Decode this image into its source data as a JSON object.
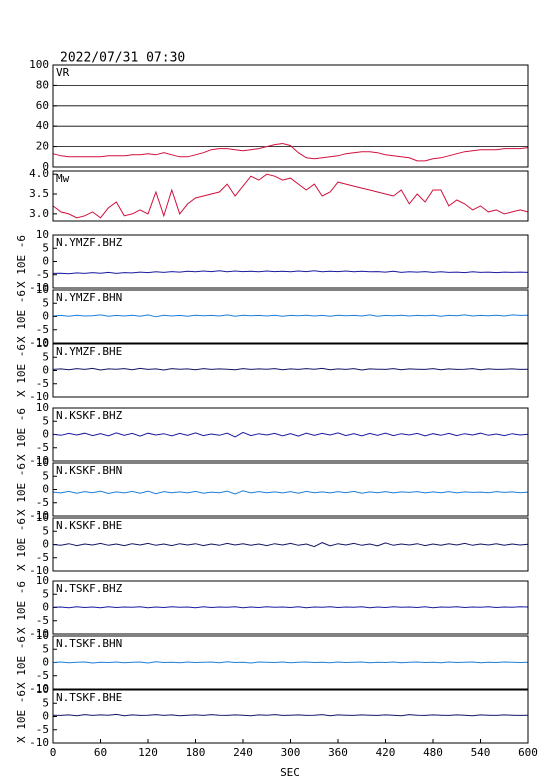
{
  "chart_data": {
    "type": "line",
    "title": "2022/07/31  07:30",
    "xlabel": "SEC",
    "xlim": [
      0,
      600
    ],
    "xticks": [
      0,
      60,
      120,
      180,
      240,
      300,
      360,
      420,
      480,
      540,
      600
    ],
    "x": [
      0,
      10,
      20,
      30,
      40,
      50,
      60,
      70,
      80,
      90,
      100,
      110,
      120,
      130,
      140,
      150,
      160,
      170,
      180,
      190,
      200,
      210,
      220,
      230,
      240,
      250,
      260,
      270,
      280,
      290,
      300,
      310,
      320,
      330,
      340,
      350,
      360,
      370,
      380,
      390,
      400,
      410,
      420,
      430,
      440,
      450,
      460,
      470,
      480,
      490,
      500,
      510,
      520,
      530,
      540,
      550,
      560,
      570,
      580,
      590,
      600
    ],
    "panels": [
      {
        "ylim": [
          0,
          100
        ],
        "yticks": [
          0,
          20,
          40,
          60,
          80,
          100
        ],
        "grid": true,
        "series": [
          {
            "name": "VR",
            "color": "#d0103c",
            "values": [
              13,
              11,
              10,
              10,
              10,
              10,
              10,
              11,
              11,
              11,
              12,
              12,
              13,
              12,
              14,
              12,
              10,
              10,
              12,
              14,
              17,
              18,
              18,
              17,
              16,
              17,
              18,
              20,
              22,
              23,
              21,
              14,
              9,
              8,
              9,
              10,
              11,
              13,
              14,
              15,
              15,
              14,
              12,
              11,
              10,
              9,
              6,
              6,
              8,
              9,
              11,
              13,
              15,
              16,
              17,
              17,
              17,
              18,
              18,
              18,
              19
            ]
          }
        ]
      },
      {
        "ylim": [
          2.82,
          4.08
        ],
        "yticks": [
          {
            "value": 3,
            "label": "3.0"
          },
          3.5,
          {
            "value": 4,
            "label": "4.0"
          }
        ],
        "grid": false,
        "series": [
          {
            "name": "Mw",
            "color": "#d0103c",
            "values": [
              3.2,
              3.05,
              3.0,
              2.9,
              2.95,
              3.05,
              2.9,
              3.15,
              3.3,
              2.95,
              3.0,
              3.1,
              3.0,
              3.55,
              2.95,
              3.6,
              3.0,
              3.25,
              3.4,
              3.45,
              3.5,
              3.55,
              3.75,
              3.45,
              3.7,
              3.95,
              3.85,
              4.0,
              3.95,
              3.85,
              3.9,
              3.75,
              3.6,
              3.75,
              3.45,
              3.55,
              3.8,
              3.75,
              3.7,
              3.65,
              3.6,
              3.55,
              3.5,
              3.45,
              3.6,
              3.25,
              3.5,
              3.3,
              3.6,
              3.6,
              3.2,
              3.35,
              3.25,
              3.1,
              3.2,
              3.05,
              3.1,
              3.0,
              3.05,
              3.1,
              3.05
            ]
          }
        ]
      },
      {
        "ylim": [
          -10,
          10
        ],
        "yticks": [
          -10,
          -5,
          0,
          5,
          10
        ],
        "ylabel": "X 10E -6",
        "grid": false,
        "series": [
          {
            "name": "N.YMZF.BHZ",
            "color": "#1a1aa0",
            "values": [
              -4.5,
              -4.4,
              -4.6,
              -4.3,
              -4.5,
              -4.2,
              -4.4,
              -4.1,
              -4.5,
              -4.2,
              -4.3,
              -4.0,
              -4.2,
              -3.9,
              -4.1,
              -3.8,
              -4.0,
              -3.7,
              -3.9,
              -3.6,
              -3.8,
              -3.5,
              -3.9,
              -3.6,
              -3.8,
              -3.7,
              -3.9,
              -3.6,
              -3.8,
              -3.7,
              -3.9,
              -3.6,
              -3.8,
              -3.5,
              -3.9,
              -3.7,
              -3.8,
              -3.6,
              -3.9,
              -3.7,
              -3.9,
              -3.8,
              -4.0,
              -3.7,
              -4.1,
              -3.9,
              -4.0,
              -3.8,
              -4.1,
              -3.9,
              -4.1,
              -4.0,
              -4.2,
              -3.9,
              -4.1,
              -4.0,
              -4.2,
              -4.0,
              -4.1,
              -4.0,
              -4.1
            ]
          }
        ]
      },
      {
        "ylim": [
          -10,
          10
        ],
        "yticks": [
          -10,
          -5,
          0,
          5,
          10
        ],
        "ylabel": "X 10E -6",
        "grid": false,
        "series": [
          {
            "name": "N.YMZF.BHN",
            "color": "#1e7fd8",
            "values": [
              0.2,
              0.4,
              0.1,
              0.5,
              0.2,
              0.3,
              0.6,
              0.1,
              0.4,
              0.2,
              0.5,
              0.1,
              0.6,
              -0.1,
              0.5,
              0.2,
              0.4,
              0.1,
              0.5,
              0.3,
              0.4,
              0.2,
              0.6,
              0.1,
              0.5,
              0.3,
              0.4,
              0.2,
              0.5,
              0.1,
              0.4,
              0.3,
              0.5,
              0.2,
              0.4,
              0.1,
              0.5,
              0.3,
              0.4,
              0.2,
              0.6,
              0.1,
              0.4,
              0.3,
              0.5,
              0.2,
              0.4,
              0.3,
              0.5,
              0.1,
              0.4,
              0.3,
              0.6,
              0.2,
              0.4,
              0.3,
              0.5,
              0.2,
              0.6,
              0.4,
              0.5
            ]
          }
        ]
      },
      {
        "ylim": [
          -10,
          10
        ],
        "yticks": [
          -10,
          -5,
          0,
          5,
          10
        ],
        "ylabel": "X 10E -6",
        "grid": false,
        "series": [
          {
            "name": "N.YMZF.BHE",
            "color": "#141464",
            "values": [
              0.4,
              0.6,
              0.3,
              0.7,
              0.4,
              0.8,
              0.2,
              0.6,
              0.5,
              0.7,
              0.3,
              0.8,
              0.4,
              0.6,
              0.2,
              0.7,
              0.5,
              0.6,
              0.3,
              0.7,
              0.4,
              0.6,
              0.5,
              0.3,
              0.7,
              0.4,
              0.6,
              0.5,
              0.7,
              0.3,
              0.6,
              0.4,
              0.7,
              0.5,
              0.8,
              0.3,
              0.6,
              0.4,
              0.7,
              0.2,
              0.6,
              0.5,
              0.4,
              0.7,
              0.3,
              0.6,
              0.5,
              0.4,
              0.7,
              0.3,
              0.6,
              0.4,
              0.5,
              0.7,
              0.3,
              0.6,
              0.4,
              0.5,
              0.6,
              0.4,
              0.5
            ]
          }
        ]
      },
      {
        "ylim": [
          -10,
          10
        ],
        "yticks": [
          -10,
          -5,
          0,
          5,
          10
        ],
        "ylabel": "X 10E -6",
        "grid": false,
        "series": [
          {
            "name": "N.KSKF.BHZ",
            "color": "#1a1aa0",
            "values": [
              0.1,
              -0.3,
              0.4,
              -0.2,
              0.5,
              -0.4,
              0.3,
              -0.5,
              0.6,
              -0.3,
              0.4,
              -0.6,
              0.5,
              -0.2,
              0.3,
              -0.5,
              0.4,
              -0.3,
              0.6,
              -0.4,
              0.2,
              -0.3,
              0.5,
              -0.9,
              0.8,
              -0.4,
              0.3,
              -0.2,
              0.4,
              -0.5,
              0.3,
              -0.6,
              0.5,
              -0.3,
              0.4,
              -0.2,
              0.6,
              -0.4,
              0.3,
              -0.5,
              0.4,
              -0.3,
              0.5,
              -0.4,
              0.3,
              -0.2,
              0.4,
              -0.5,
              0.3,
              -0.3,
              0.4,
              -0.4,
              0.3,
              -0.2,
              0.5,
              -0.3,
              0.2,
              -0.4,
              0.3,
              -0.2,
              0.1
            ]
          }
        ]
      },
      {
        "ylim": [
          -10,
          10
        ],
        "yticks": [
          -10,
          -5,
          0,
          5,
          10
        ],
        "ylabel": "X 10E -6",
        "grid": false,
        "series": [
          {
            "name": "N.KSKF.BHN",
            "color": "#1e7fd8",
            "values": [
              -1.0,
              -1.3,
              -0.7,
              -1.4,
              -0.8,
              -1.2,
              -0.6,
              -1.5,
              -0.9,
              -1.3,
              -0.7,
              -1.4,
              -0.6,
              -1.6,
              -0.8,
              -1.2,
              -0.9,
              -1.3,
              -0.7,
              -1.4,
              -1.0,
              -1.2,
              -0.6,
              -1.7,
              -0.5,
              -1.3,
              -0.8,
              -1.2,
              -0.9,
              -1.3,
              -0.8,
              -1.4,
              -0.7,
              -1.2,
              -0.9,
              -1.3,
              -0.8,
              -1.2,
              -0.7,
              -1.4,
              -0.9,
              -1.2,
              -0.8,
              -1.3,
              -0.9,
              -1.1,
              -0.8,
              -1.3,
              -0.9,
              -1.2,
              -0.8,
              -1.3,
              -0.9,
              -1.1,
              -1.0,
              -1.2,
              -0.8,
              -1.1,
              -0.9,
              -1.2,
              -1.0
            ]
          }
        ]
      },
      {
        "ylim": [
          -10,
          10
        ],
        "yticks": [
          -10,
          -5,
          0,
          5,
          10
        ],
        "ylabel": "X 10E -6",
        "grid": false,
        "series": [
          {
            "name": "N.KSKF.BHE",
            "color": "#141464",
            "values": [
              0.0,
              -0.3,
              0.3,
              -0.4,
              0.2,
              -0.2,
              0.4,
              -0.3,
              0.2,
              -0.4,
              0.3,
              -0.2,
              0.4,
              -0.3,
              0.2,
              -0.4,
              0.3,
              -0.2,
              0.3,
              -0.4,
              0.2,
              -0.3,
              0.4,
              -0.2,
              0.3,
              -0.3,
              0.2,
              -0.4,
              0.3,
              -0.2,
              0.4,
              -0.3,
              0.2,
              -0.8,
              0.7,
              -0.5,
              0.3,
              -0.2,
              0.4,
              -0.3,
              0.2,
              -0.5,
              0.6,
              -0.3,
              0.2,
              -0.2,
              0.3,
              -0.4,
              0.2,
              -0.3,
              0.3,
              -0.2,
              0.4,
              -0.3,
              0.2,
              -0.2,
              0.3,
              -0.3,
              0.2,
              -0.2,
              0.1
            ]
          }
        ]
      },
      {
        "ylim": [
          -10,
          10
        ],
        "yticks": [
          -10,
          -5,
          0,
          5,
          10
        ],
        "ylabel": "X 10E -6",
        "grid": false,
        "series": [
          {
            "name": "N.TSKF.BHZ",
            "color": "#1a1aa0",
            "values": [
              0.1,
              0.2,
              -0.1,
              0.3,
              0.0,
              0.2,
              -0.1,
              0.3,
              0.0,
              0.2,
              0.1,
              0.3,
              -0.1,
              0.2,
              0.0,
              0.3,
              0.1,
              0.2,
              -0.1,
              0.3,
              0.0,
              0.2,
              0.1,
              0.3,
              -0.1,
              0.2,
              0.0,
              0.3,
              0.1,
              0.2,
              0.0,
              0.3,
              -0.1,
              0.2,
              0.1,
              0.3,
              0.0,
              0.2,
              0.1,
              0.3,
              -0.1,
              0.2,
              0.0,
              0.3,
              0.1,
              0.2,
              0.0,
              0.3,
              -0.1,
              0.2,
              0.1,
              0.3,
              0.0,
              0.2,
              0.1,
              0.3,
              0.0,
              0.2,
              0.1,
              0.3,
              0.2
            ]
          }
        ]
      },
      {
        "ylim": [
          -10,
          10
        ],
        "yticks": [
          -10,
          -5,
          0,
          5,
          10
        ],
        "ylabel": "X 10E -6",
        "grid": false,
        "series": [
          {
            "name": "N.TSKF.BHN",
            "color": "#1e7fd8",
            "values": [
              0.0,
              0.2,
              -0.1,
              0.1,
              0.2,
              -0.2,
              0.1,
              0.0,
              0.2,
              -0.1,
              0.1,
              0.2,
              -0.2,
              0.3,
              0.0,
              0.1,
              -0.1,
              0.2,
              0.0,
              0.1,
              0.2,
              -0.1,
              0.3,
              0.0,
              0.1,
              -0.2,
              0.2,
              0.1,
              0.0,
              0.2,
              -0.1,
              0.1,
              0.2,
              0.0,
              0.1,
              -0.1,
              0.2,
              0.0,
              0.1,
              0.2,
              -0.1,
              0.1,
              0.0,
              0.2,
              -0.1,
              0.1,
              0.2,
              0.0,
              0.1,
              -0.1,
              0.2,
              0.0,
              0.1,
              0.2,
              -0.1,
              0.1,
              0.0,
              0.2,
              0.1,
              0.0,
              0.1
            ]
          }
        ]
      },
      {
        "ylim": [
          -10,
          10
        ],
        "yticks": [
          -10,
          -5,
          0,
          5,
          10
        ],
        "ylabel": "X 10E -6",
        "grid": false,
        "series": [
          {
            "name": "N.TSKF.BHE",
            "color": "#141464",
            "values": [
              0.5,
              0.4,
              0.6,
              0.3,
              0.7,
              0.4,
              0.6,
              0.5,
              0.8,
              0.3,
              0.6,
              0.4,
              0.5,
              0.7,
              0.4,
              0.6,
              0.3,
              0.5,
              0.6,
              0.4,
              0.7,
              0.5,
              0.4,
              0.6,
              0.5,
              0.3,
              0.6,
              0.5,
              0.7,
              0.4,
              0.5,
              0.6,
              0.4,
              0.5,
              0.7,
              0.3,
              0.6,
              0.5,
              0.4,
              0.6,
              0.5,
              0.4,
              0.6,
              0.5,
              0.3,
              0.7,
              0.5,
              0.4,
              0.6,
              0.5,
              0.4,
              0.6,
              0.5,
              0.3,
              0.6,
              0.5,
              0.4,
              0.6,
              0.5,
              0.4,
              0.5
            ]
          }
        ]
      }
    ]
  }
}
